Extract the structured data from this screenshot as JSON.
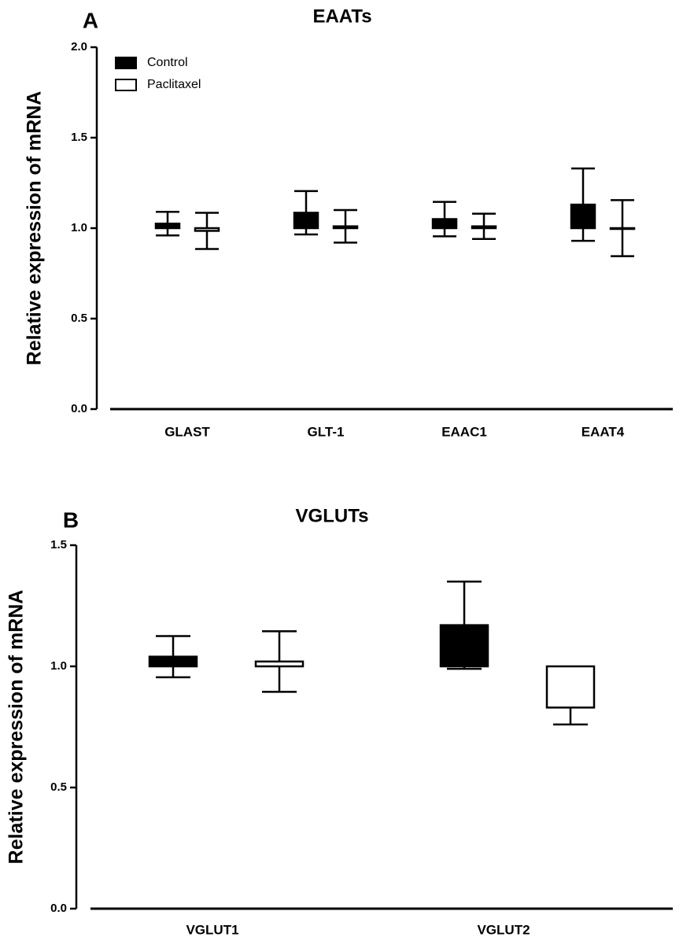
{
  "chart_data": [
    {
      "type": "bar",
      "panel_label": "A",
      "title": "EAATs",
      "y_label": "Relative expression of mRNA",
      "categories": [
        "GLAST",
        "GLT-1",
        "EAAC1",
        "EAAT4"
      ],
      "bar_baseline": 1,
      "series": [
        {
          "name": "Control",
          "color": "#000000",
          "values": [
            1.025,
            1.085,
            1.05,
            1.13
          ],
          "errors": [
            0.065,
            0.12,
            0.095,
            0.2
          ]
        },
        {
          "name": "Paclitaxel",
          "color": "#ffffff",
          "values": [
            0.985,
            1.01,
            1.01,
            1.0
          ],
          "errors": [
            0.1,
            0.09,
            0.07,
            0.155
          ]
        }
      ],
      "ylim": [
        0,
        2
      ],
      "yticks": [
        {
          "value": 0,
          "label": "0.0"
        },
        {
          "value": 0.5,
          "label": "0.5"
        },
        {
          "value": 1,
          "label": "1.0"
        },
        {
          "value": 1.5,
          "label": "1.5"
        },
        {
          "value": 2,
          "label": "2.0"
        }
      ],
      "legend": "upper-left"
    },
    {
      "type": "bar",
      "panel_label": "B",
      "title": "VGLUTs",
      "y_label": "Relative expression of mRNA",
      "categories": [
        "VGLUT1",
        "VGLUT2"
      ],
      "bar_baseline": 1,
      "series": [
        {
          "name": "Control",
          "color": "#000000",
          "values": [
            1.04,
            1.17
          ],
          "errors": [
            0.085,
            0.18
          ]
        },
        {
          "name": "Paclitaxel",
          "color": "#ffffff",
          "values": [
            1.02,
            0.83
          ],
          "errors": [
            0.125,
            0.07
          ]
        }
      ],
      "ylim": [
        0,
        1.5
      ],
      "yticks": [
        {
          "value": 0,
          "label": "0.0"
        },
        {
          "value": 0.5,
          "label": "0.5"
        },
        {
          "value": 1,
          "label": "1.0"
        },
        {
          "value": 1.5,
          "label": "1.5"
        }
      ]
    }
  ]
}
